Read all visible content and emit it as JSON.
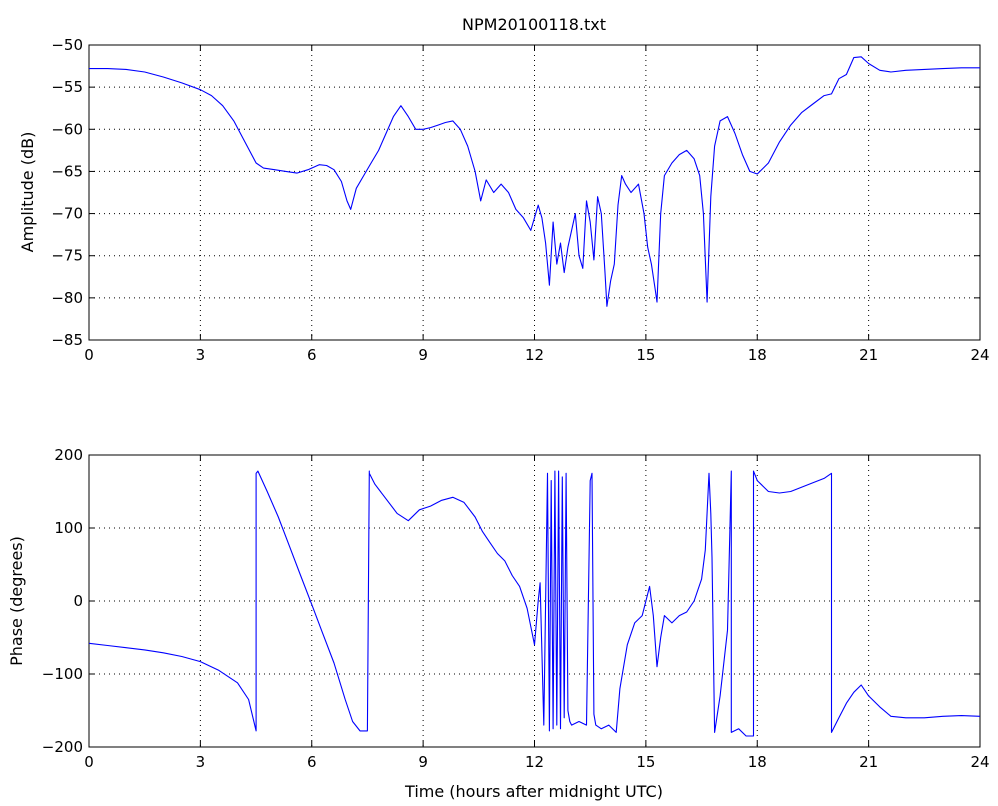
{
  "chart_data": [
    {
      "type": "line",
      "title": "NPM20100118.txt",
      "xlabel": "",
      "ylabel": "Amplitude (dB)",
      "xlim": [
        0,
        24
      ],
      "ylim": [
        -85,
        -50
      ],
      "xticks": [
        0,
        3,
        6,
        9,
        12,
        15,
        18,
        21,
        24
      ],
      "yticks": [
        -85,
        -80,
        -75,
        -70,
        -65,
        -60,
        -55,
        -50
      ],
      "grid": true,
      "series": [
        {
          "color": "#0000ff",
          "x": [
            0,
            0.5,
            1.0,
            1.5,
            2.0,
            2.5,
            3.0,
            3.3,
            3.6,
            3.9,
            4.2,
            4.5,
            4.7,
            5.0,
            5.3,
            5.6,
            5.9,
            6.2,
            6.4,
            6.6,
            6.8,
            6.95,
            7.05,
            7.2,
            7.4,
            7.6,
            7.8,
            8.0,
            8.2,
            8.4,
            8.6,
            8.8,
            9.0,
            9.2,
            9.4,
            9.6,
            9.8,
            10.0,
            10.2,
            10.4,
            10.55,
            10.7,
            10.9,
            11.1,
            11.3,
            11.5,
            11.7,
            11.9,
            12.1,
            12.2,
            12.3,
            12.4,
            12.5,
            12.6,
            12.7,
            12.8,
            12.9,
            13.0,
            13.1,
            13.2,
            13.3,
            13.4,
            13.5,
            13.6,
            13.7,
            13.8,
            13.9,
            13.95,
            14.05,
            14.15,
            14.25,
            14.35,
            14.45,
            14.6,
            14.8,
            14.95,
            15.05,
            15.15,
            15.25,
            15.3,
            15.4,
            15.5,
            15.7,
            15.9,
            16.1,
            16.3,
            16.45,
            16.55,
            16.65,
            16.75,
            16.85,
            17.0,
            17.2,
            17.4,
            17.6,
            17.8,
            18.0,
            18.3,
            18.6,
            18.9,
            19.2,
            19.5,
            19.8,
            20.0,
            20.2,
            20.4,
            20.6,
            20.8,
            21.0,
            21.3,
            21.6,
            22.0,
            22.5,
            23.0,
            23.5,
            24.0
          ],
          "y": [
            -52.8,
            -52.8,
            -52.9,
            -53.2,
            -53.8,
            -54.5,
            -55.3,
            -56.0,
            -57.2,
            -59.0,
            -61.5,
            -64.0,
            -64.6,
            -64.8,
            -65.0,
            -65.2,
            -64.8,
            -64.2,
            -64.3,
            -64.8,
            -66.2,
            -68.5,
            -69.5,
            -67.0,
            -65.5,
            -64.0,
            -62.5,
            -60.5,
            -58.5,
            -57.2,
            -58.5,
            -60.0,
            -60.0,
            -59.8,
            -59.5,
            -59.2,
            -59.0,
            -60.0,
            -62.0,
            -65.0,
            -68.5,
            -66.0,
            -67.5,
            -66.5,
            -67.5,
            -69.5,
            -70.5,
            -72.0,
            -69.0,
            -70.5,
            -73.5,
            -78.5,
            -71.0,
            -76.0,
            -73.5,
            -77.0,
            -74.0,
            -72.0,
            -70.0,
            -75.0,
            -76.5,
            -68.5,
            -71.0,
            -75.5,
            -68.0,
            -70.0,
            -77.0,
            -81.0,
            -78.0,
            -76.0,
            -69.0,
            -65.5,
            -66.5,
            -67.5,
            -66.5,
            -70.0,
            -74.0,
            -76.0,
            -79.0,
            -80.5,
            -70.0,
            -65.5,
            -64.0,
            -63.0,
            -62.5,
            -63.5,
            -65.5,
            -70.0,
            -80.5,
            -68.0,
            -62.0,
            -59.0,
            -58.5,
            -60.5,
            -63.0,
            -65.0,
            -65.3,
            -64.0,
            -61.5,
            -59.5,
            -58.0,
            -57.0,
            -56.0,
            -55.8,
            -54.0,
            -53.5,
            -51.5,
            -51.4,
            -52.2,
            -53.0,
            -53.2,
            -53.0,
            -52.9,
            -52.8,
            -52.7,
            -52.7
          ]
        }
      ]
    },
    {
      "type": "line",
      "title": "",
      "xlabel": "Time (hours after midnight UTC)",
      "ylabel": "Phase (degrees)",
      "xlim": [
        0,
        24
      ],
      "ylim": [
        -200,
        200
      ],
      "xticks": [
        0,
        3,
        6,
        9,
        12,
        15,
        18,
        21,
        24
      ],
      "yticks": [
        -200,
        -100,
        0,
        100,
        200
      ],
      "grid": true,
      "series": [
        {
          "color": "#0000ff",
          "x": [
            0,
            0.5,
            1.0,
            1.5,
            2.0,
            2.5,
            3.0,
            3.5,
            4.0,
            4.3,
            4.5,
            4.5,
            4.55,
            4.8,
            5.1,
            5.4,
            5.7,
            6.0,
            6.3,
            6.6,
            6.9,
            7.1,
            7.3,
            7.5,
            7.55,
            7.55,
            7.7,
            8.0,
            8.3,
            8.6,
            8.9,
            9.2,
            9.5,
            9.8,
            10.1,
            10.4,
            10.6,
            10.8,
            11.0,
            11.2,
            11.4,
            11.6,
            11.8,
            12.0,
            12.1,
            12.15,
            12.25,
            12.35,
            12.4,
            12.45,
            12.5,
            12.55,
            12.6,
            12.65,
            12.7,
            12.75,
            12.8,
            12.85,
            12.9,
            12.95,
            13.0,
            13.2,
            13.4,
            13.5,
            13.55,
            13.6,
            13.65,
            13.8,
            14.0,
            14.2,
            14.3,
            14.5,
            14.7,
            14.9,
            15.0,
            15.1,
            15.2,
            15.3,
            15.4,
            15.5,
            15.7,
            15.9,
            16.1,
            16.3,
            16.5,
            16.6,
            16.7,
            16.75,
            16.78,
            16.85,
            17.0,
            17.2,
            17.3,
            17.3,
            17.5,
            17.7,
            17.9,
            17.9,
            18.0,
            18.3,
            18.6,
            18.9,
            19.2,
            19.5,
            19.8,
            20.0,
            20.0,
            20.2,
            20.4,
            20.6,
            20.8,
            21.0,
            21.3,
            21.6,
            22.0,
            22.5,
            23.0,
            23.5,
            24.0
          ],
          "y": [
            -58,
            -61,
            -64,
            -67,
            -71,
            -76,
            -83,
            -95,
            -112,
            -135,
            -178,
            175,
            178,
            150,
            115,
            75,
            35,
            -5,
            -45,
            -85,
            -135,
            -165,
            -178,
            -178,
            178,
            175,
            160,
            140,
            120,
            110,
            125,
            130,
            138,
            142,
            135,
            115,
            95,
            80,
            65,
            55,
            35,
            20,
            -10,
            -60,
            0,
            25,
            -170,
            175,
            -178,
            165,
            -175,
            178,
            -170,
            178,
            -175,
            170,
            -160,
            175,
            -150,
            -165,
            -170,
            -165,
            -170,
            165,
            175,
            -155,
            -170,
            -175,
            -170,
            -180,
            -120,
            -60,
            -30,
            -20,
            0,
            20,
            -20,
            -90,
            -50,
            -20,
            -30,
            -20,
            -15,
            0,
            30,
            70,
            175,
            120,
            60,
            -180,
            -130,
            -40,
            178,
            -180,
            -175,
            -185,
            -185,
            178,
            165,
            150,
            148,
            150,
            156,
            162,
            168,
            175,
            -180,
            -160,
            -140,
            -125,
            -115,
            -130,
            -145,
            -158,
            -160,
            -160,
            -158,
            -157,
            -158
          ]
        }
      ]
    }
  ]
}
